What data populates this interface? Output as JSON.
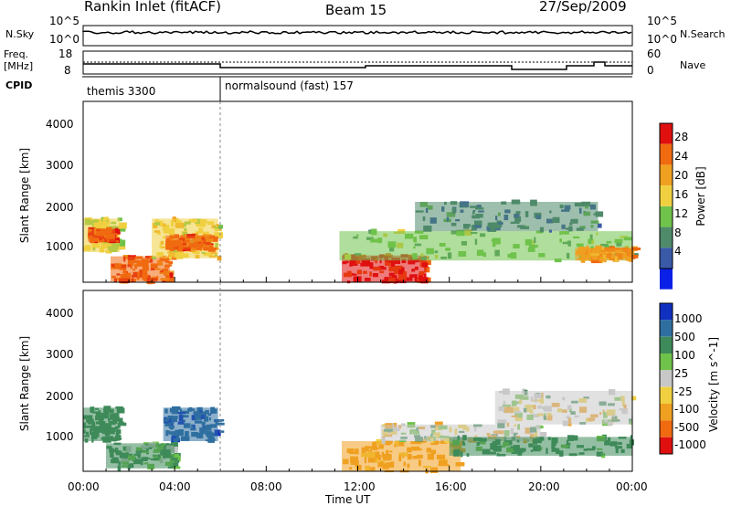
{
  "header": {
    "station": "Rankin Inlet (fitACF)",
    "beam": "Beam 15",
    "date": "27/Sep/2009"
  },
  "left_labels": {
    "nsky": "N.Sky",
    "freq_top": "Freq.",
    "freq_unit": "[MHz]",
    "cpid": "CPID"
  },
  "right_labels": {
    "nsearch": "N.Search",
    "nave": "Nave"
  },
  "cpid_segments": [
    "themis 3300",
    "normalsound (fast) 157"
  ],
  "ticks": {
    "noise_left": [
      "10^5",
      "10^0"
    ],
    "noise_right": [
      "10^5",
      "10^0"
    ],
    "freq_left": [
      "18",
      "8"
    ],
    "freq_right": [
      "60",
      "0"
    ],
    "range": [
      "1000",
      "2000",
      "3000",
      "4000"
    ],
    "time": [
      "00:00",
      "04:00",
      "08:00",
      "12:00",
      "16:00",
      "20:00",
      "00:00"
    ]
  },
  "chart_data": [
    {
      "type": "heatmap",
      "title": "Power",
      "xlabel": "",
      "ylabel": "Slant Range [km]",
      "xlim": [
        0,
        24
      ],
      "ylim": [
        180,
        4500
      ],
      "colorbar": {
        "label": "Power [dB]",
        "ticks": [
          "4",
          "8",
          "12",
          "16",
          "20",
          "24",
          "28"
        ],
        "colors": [
          "#0a20e6",
          "#3a5aa8",
          "#4f8a6a",
          "#6fc24a",
          "#f0d040",
          "#f0a020",
          "#f06a10",
          "#e01010"
        ]
      },
      "patches": [
        {
          "t0": 0.0,
          "t1": 1.6,
          "r0": 900,
          "r1": 1700,
          "v": 16
        },
        {
          "t0": 0.2,
          "t1": 1.4,
          "r0": 1150,
          "r1": 1450,
          "v": 27
        },
        {
          "t0": 1.2,
          "t1": 3.8,
          "r0": 200,
          "r1": 800,
          "v": 26
        },
        {
          "t0": 3.0,
          "t1": 5.9,
          "r0": 750,
          "r1": 1700,
          "v": 18
        },
        {
          "t0": 3.6,
          "t1": 5.6,
          "r0": 950,
          "r1": 1300,
          "v": 25
        },
        {
          "t0": 11.3,
          "t1": 15.0,
          "r0": 180,
          "r1": 820,
          "v": 29
        },
        {
          "t0": 11.2,
          "t1": 24.0,
          "r0": 700,
          "r1": 1400,
          "v": 14
        },
        {
          "t0": 14.5,
          "t1": 22.5,
          "r0": 1400,
          "r1": 2100,
          "v": 9
        },
        {
          "t0": 21.5,
          "t1": 24.0,
          "r0": 700,
          "r1": 1000,
          "v": 23
        }
      ]
    },
    {
      "type": "heatmap",
      "title": "Velocity",
      "xlabel": "Time UT",
      "ylabel": "Slant Range [km]",
      "xlim": [
        0,
        24
      ],
      "ylim": [
        180,
        4500
      ],
      "colorbar": {
        "label": "Velocity [m s^-1]",
        "ticks": [
          "1000",
          "500",
          "100",
          "25",
          "-25",
          "-100",
          "-500",
          "-1000"
        ],
        "colors": [
          "#1030c0",
          "#2f6fa0",
          "#3e8a5a",
          "#6fc24a",
          "#c8c8c8",
          "#f0d040",
          "#f0a020",
          "#f06a10",
          "#e01010"
        ]
      },
      "patches": [
        {
          "t0": 0.0,
          "t1": 1.6,
          "r0": 900,
          "r1": 1700,
          "v": 300
        },
        {
          "t0": 1.0,
          "t1": 4.0,
          "r0": 250,
          "r1": 850,
          "v": 150
        },
        {
          "t0": 3.5,
          "t1": 5.9,
          "r0": 900,
          "r1": 1700,
          "v": 900
        },
        {
          "t0": 11.3,
          "t1": 16.5,
          "r0": 180,
          "r1": 900,
          "v": -200
        },
        {
          "t0": 13.0,
          "t1": 20.0,
          "r0": 900,
          "r1": 1300,
          "v": 0
        },
        {
          "t0": 16.0,
          "t1": 24.0,
          "r0": 550,
          "r1": 1000,
          "v": 200
        },
        {
          "t0": 18.0,
          "t1": 24.0,
          "r0": 1300,
          "r1": 2100,
          "v": 0
        }
      ]
    }
  ]
}
